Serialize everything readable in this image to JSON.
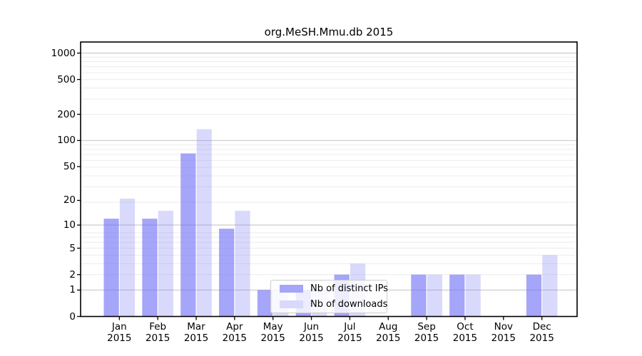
{
  "chart_data": {
    "type": "bar",
    "title": "org.MeSH.Mmu.db 2015",
    "categories": [
      "Jan",
      "Feb",
      "Mar",
      "Apr",
      "May",
      "Jun",
      "Jul",
      "Aug",
      "Sep",
      "Oct",
      "Nov",
      "Dec"
    ],
    "year": "2015",
    "series": [
      {
        "name": "Nb of distinct IPs",
        "values": [
          12,
          12,
          71,
          9,
          1,
          1,
          2,
          0,
          2,
          2,
          0,
          2
        ],
        "bar_color": "rgba(110,110,245,0.62)",
        "legend_color": "#a5a5f9"
      },
      {
        "name": "Nb of downloads",
        "values": [
          21,
          15,
          135,
          15,
          1,
          1,
          3,
          0,
          2,
          2,
          0,
          4
        ],
        "bar_color": "rgba(130,130,245,0.30)",
        "legend_color": "#d9d9fc"
      }
    ],
    "yticks": [
      0,
      1,
      2,
      5,
      10,
      20,
      50,
      100,
      200,
      500,
      1000
    ],
    "y_scale": "log1p",
    "ylim": [
      0,
      1324
    ],
    "grid": true,
    "legend_position": "lower-center",
    "colors": {
      "grid_minor": "#ececec",
      "grid_major": "#c6c6c6",
      "spine": "#000000",
      "background": "#ffffff"
    }
  }
}
